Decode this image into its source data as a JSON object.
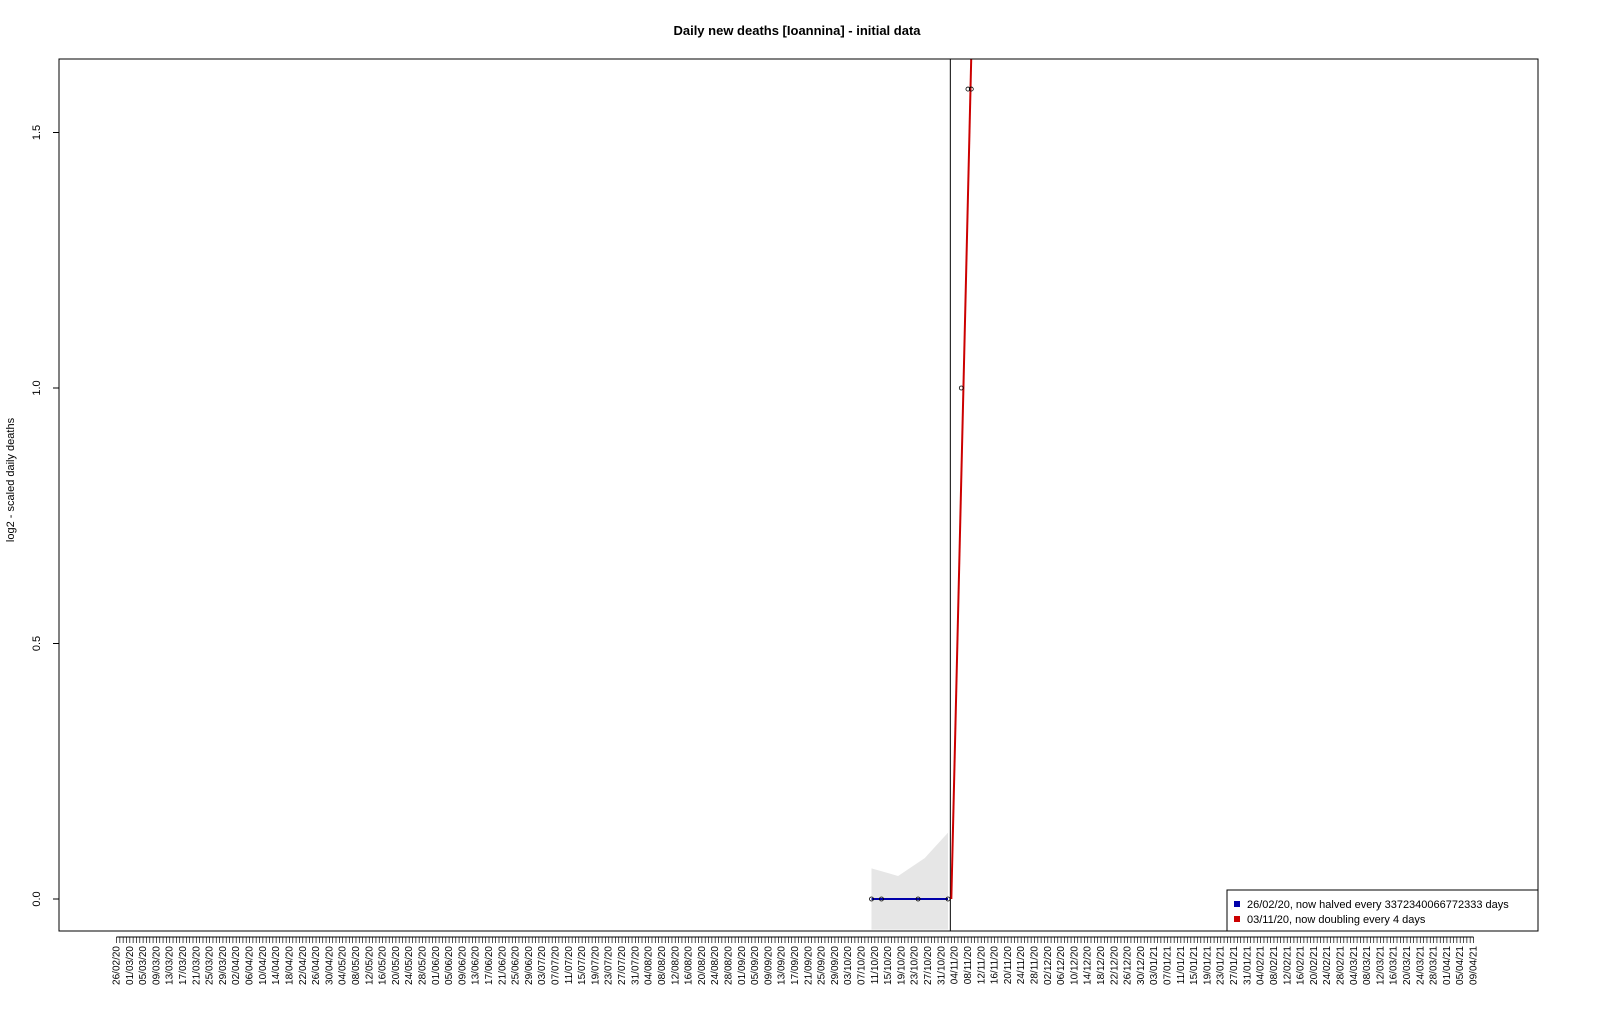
{
  "chart_data": {
    "type": "line",
    "title": "Daily new deaths [Ioannina] - initial data",
    "xlabel": "",
    "ylabel": "log2 - scaled daily deaths",
    "x_start": "26/02/20",
    "x_end": "09/04/21",
    "ylim": [
      -0.06,
      1.65
    ],
    "yticks": [
      0.0,
      0.5,
      1.0,
      1.5
    ],
    "ytick_labels": [
      "0.0",
      "0.5",
      "1.0",
      "1.5"
    ],
    "xtick_labels": [
      "26/02/20",
      "01/03/20",
      "05/03/20",
      "09/03/20",
      "13/03/20",
      "17/03/20",
      "21/03/20",
      "25/03/20",
      "29/03/20",
      "02/04/20",
      "06/04/20",
      "10/04/20",
      "14/04/20",
      "18/04/20",
      "22/04/20",
      "26/04/20",
      "30/04/20",
      "04/05/20",
      "08/05/20",
      "12/05/20",
      "16/05/20",
      "20/05/20",
      "24/05/20",
      "28/05/20",
      "01/06/20",
      "05/06/20",
      "09/06/20",
      "13/06/20",
      "17/06/20",
      "21/06/20",
      "25/06/20",
      "29/06/20",
      "03/07/20",
      "07/07/20",
      "11/07/20",
      "15/07/20",
      "19/07/20",
      "23/07/20",
      "27/07/20",
      "31/07/20",
      "04/08/20",
      "08/08/20",
      "12/08/20",
      "16/08/20",
      "20/08/20",
      "24/08/20",
      "28/08/20",
      "01/09/20",
      "05/09/20",
      "09/09/20",
      "13/09/20",
      "17/09/20",
      "21/09/20",
      "25/09/20",
      "29/09/20",
      "03/10/20",
      "07/10/20",
      "11/10/20",
      "15/10/20",
      "19/10/20",
      "23/10/20",
      "27/10/20",
      "31/10/20",
      "04/11/20",
      "08/11/20",
      "12/11/20",
      "16/11/20",
      "20/11/20",
      "24/11/20",
      "28/11/20",
      "02/12/20",
      "06/12/20",
      "10/12/20",
      "14/12/20",
      "18/12/20",
      "22/12/20",
      "26/12/20",
      "30/12/20",
      "03/01/21",
      "07/01/21",
      "11/01/21",
      "15/01/21",
      "19/01/21",
      "23/01/21",
      "27/01/21",
      "31/01/21",
      "04/02/21",
      "08/02/21",
      "12/02/21",
      "16/02/21",
      "20/02/21",
      "24/02/21",
      "28/02/21",
      "04/03/21",
      "08/03/21",
      "12/03/21",
      "16/03/21",
      "20/03/21",
      "24/03/21",
      "28/03/21",
      "01/04/21",
      "05/04/21",
      "09/04/21"
    ],
    "vline_date": "03/11/20",
    "points": [
      {
        "x": "10/10/20",
        "y": 0.0
      },
      {
        "x": "13/10/20",
        "y": 0.0
      },
      {
        "x": "24/10/20",
        "y": 0.0
      },
      {
        "x": "02/11/20",
        "y": 0.0
      },
      {
        "x": "06/11/20",
        "y": 1.0
      },
      {
        "x": "08/11/20",
        "y": 1.585
      },
      {
        "x": "09/11/20",
        "y": 1.585
      }
    ],
    "series": [
      {
        "name": "26/02/20, now halved every 3372340066772333 days",
        "color": "#0000aa",
        "line": [
          {
            "x": "10/10/20",
            "y": 0.0
          },
          {
            "x": "02/11/20",
            "y": 0.0
          }
        ],
        "band_upper": [
          {
            "x": "10/10/20",
            "y": 0.06
          },
          {
            "x": "18/10/20",
            "y": 0.045
          },
          {
            "x": "26/10/20",
            "y": 0.08
          },
          {
            "x": "02/11/20",
            "y": 0.13
          }
        ],
        "band_lower": [
          {
            "x": "10/10/20",
            "y": -0.06
          },
          {
            "x": "02/11/20",
            "y": -0.06
          }
        ]
      },
      {
        "name": "03/11/20, now doubling every 4 days",
        "color": "#cc0000",
        "line": [
          {
            "x": "03/11/20",
            "y": 0.0
          },
          {
            "x": "09/11/20",
            "y": 1.65
          }
        ]
      }
    ],
    "band_color": "#e6e6e6",
    "grid": false,
    "legend_position": "bottom-right"
  }
}
